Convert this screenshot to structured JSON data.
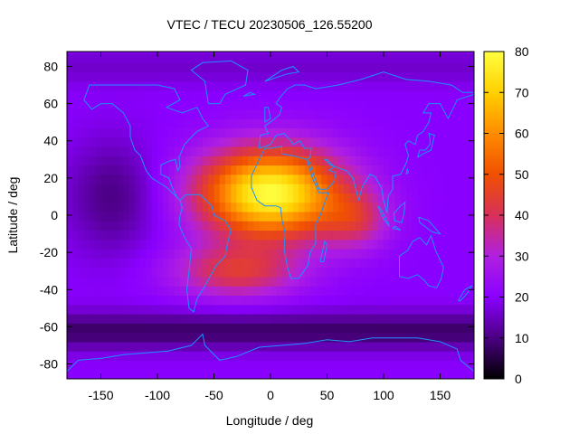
{
  "chart_data": {
    "type": "heatmap",
    "title": "VTEC / TECU 20230506_126.55200",
    "xlabel": "Longitude / deg",
    "ylabel": "Latitude / deg",
    "xlim": [
      -180,
      180
    ],
    "ylim": [
      -88,
      88
    ],
    "x_ticks": [
      -150,
      -100,
      -50,
      0,
      50,
      100,
      150
    ],
    "y_ticks": [
      -80,
      -60,
      -40,
      -20,
      0,
      20,
      40,
      60,
      80
    ],
    "colorbar": {
      "min": 0,
      "max": 80,
      "ticks": [
        0,
        10,
        20,
        30,
        40,
        50,
        60,
        70,
        80
      ],
      "palette": [
        "#000000",
        "#4b0082",
        "#8a00ff",
        "#b020e0",
        "#d8305a",
        "#f05000",
        "#ff8c00",
        "#ffd000",
        "#ffff40"
      ]
    },
    "grid": false,
    "coastline_color": "#1e90ff",
    "features": {
      "peak_vtec": 80,
      "peak_lon": 0,
      "peak_lat": 12,
      "background_vtec": 20,
      "southern_trough_vtec": 8
    }
  }
}
